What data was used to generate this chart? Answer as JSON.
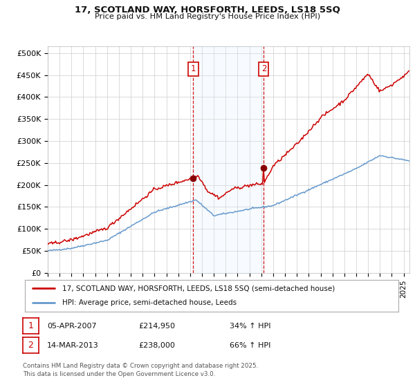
{
  "title_line1": "17, SCOTLAND WAY, HORSFORTH, LEEDS, LS18 5SQ",
  "title_line2": "Price paid vs. HM Land Registry's House Price Index (HPI)",
  "ylabel_ticks": [
    "£0",
    "£50K",
    "£100K",
    "£150K",
    "£200K",
    "£250K",
    "£300K",
    "£350K",
    "£400K",
    "£450K",
    "£500K"
  ],
  "ytick_values": [
    0,
    50000,
    100000,
    150000,
    200000,
    250000,
    300000,
    350000,
    400000,
    450000,
    500000
  ],
  "ylim": [
    0,
    515000
  ],
  "xlim_start": 1995.0,
  "xlim_end": 2025.5,
  "sale1_x": 2007.27,
  "sale1_y": 214950,
  "sale2_x": 2013.21,
  "sale2_y": 238000,
  "sale1_date": "05-APR-2007",
  "sale1_price": "£214,950",
  "sale1_hpi": "34% ↑ HPI",
  "sale2_date": "14-MAR-2013",
  "sale2_price": "£238,000",
  "sale2_hpi": "66% ↑ HPI",
  "legend_line1": "17, SCOTLAND WAY, HORSFORTH, LEEDS, LS18 5SQ (semi-detached house)",
  "legend_line2": "HPI: Average price, semi-detached house, Leeds",
  "footer": "Contains HM Land Registry data © Crown copyright and database right 2025.\nThis data is licensed under the Open Government Licence v3.0.",
  "line_color_red": "#cc0000",
  "line_color_blue": "#6699cc",
  "bg_color": "#ffffff",
  "grid_color": "#cccccc",
  "highlight_color": "#ddeeff"
}
